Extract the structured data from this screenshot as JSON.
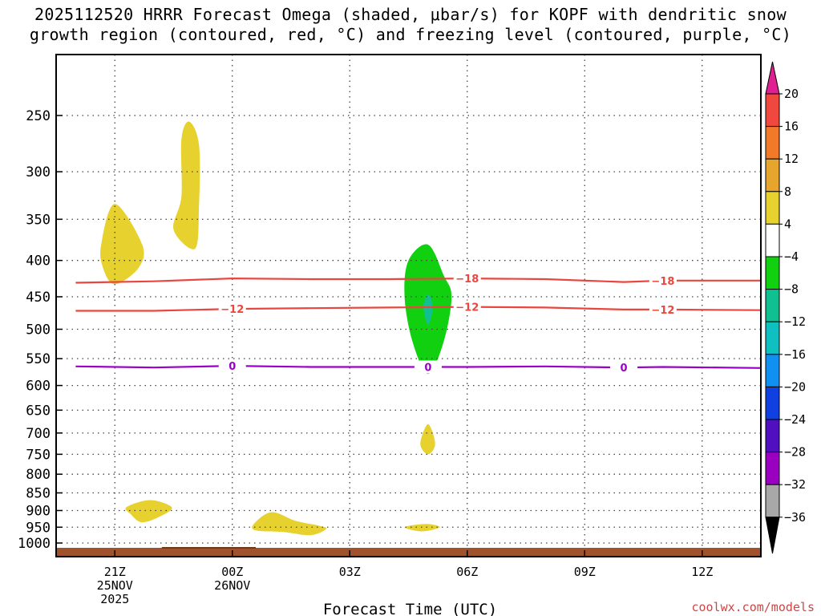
{
  "title_line1": "2025112520 HRRR Forecast Omega (shaded, μbar/s) for KOPF with dendritic snow",
  "title_line2": "growth region (contoured, red, °C) and freezing level (contoured, purple, °C)",
  "credit": "coolwx.com/models",
  "colors": {
    "dgz_contour": "#e8473f",
    "freezing_contour": "#9a00c8",
    "ground": "#a0522d",
    "grid": "#444444"
  },
  "chart_data": {
    "type": "heatmap",
    "xlabel": "Forecast Time (UTC)",
    "ylabel": "",
    "y_axis": "pressure (hPa), log scale, inverted",
    "ylim": [
      1050,
      200
    ],
    "xlim_hours_after_21Z": [
      -1.5,
      16.5
    ],
    "y_ticks": [
      250,
      300,
      350,
      400,
      450,
      500,
      550,
      600,
      650,
      700,
      750,
      800,
      850,
      900,
      950,
      1000
    ],
    "x_ticks": [
      {
        "hour": 0,
        "line1": "21Z",
        "line2": "25NOV",
        "line3": "2025"
      },
      {
        "hour": 3,
        "line1": "00Z",
        "line2": "26NOV",
        "line3": ""
      },
      {
        "hour": 6,
        "line1": "03Z",
        "line2": "",
        "line3": ""
      },
      {
        "hour": 9,
        "line1": "06Z",
        "line2": "",
        "line3": ""
      },
      {
        "hour": 12,
        "line1": "09Z",
        "line2": "",
        "line3": ""
      },
      {
        "hour": 15,
        "line1": "12Z",
        "line2": "",
        "line3": ""
      }
    ],
    "grid": true,
    "colorbar": {
      "labels": [
        "20",
        "16",
        "12",
        "8",
        "4",
        "−4",
        "−8",
        "−12",
        "−16",
        "−20",
        "−24",
        "−28",
        "−32",
        "−36"
      ],
      "bins": [
        {
          "color": "#e02090"
        },
        {
          "color": "#f0473f"
        },
        {
          "color": "#f07a2a"
        },
        {
          "color": "#e6a62e"
        },
        {
          "color": "#e6d12e"
        },
        {
          "color": "#ffffff"
        },
        {
          "color": "#10d010"
        },
        {
          "color": "#10c090"
        },
        {
          "color": "#10c0c0"
        },
        {
          "color": "#1090f0"
        },
        {
          "color": "#1040e0"
        },
        {
          "color": "#5010c0"
        },
        {
          "color": "#9a00c0"
        },
        {
          "color": "#a8a8a8"
        },
        {
          "color": "#000000"
        }
      ]
    },
    "contours": [
      {
        "name": "dgz-minus18",
        "label": "−18",
        "color": "#e8473f",
        "points": [
          [
            -1.0,
            430
          ],
          [
            1.0,
            428
          ],
          [
            3.0,
            424
          ],
          [
            5.0,
            425
          ],
          [
            7.0,
            425
          ],
          [
            9.0,
            424
          ],
          [
            11.0,
            425
          ],
          [
            13.0,
            429
          ],
          [
            14.0,
            427
          ],
          [
            16.5,
            427
          ]
        ],
        "label_hours": [
          9.0,
          14.0
        ]
      },
      {
        "name": "dgz-minus12",
        "label": "−12",
        "color": "#e8473f",
        "points": [
          [
            -1.0,
            471
          ],
          [
            1.0,
            471
          ],
          [
            3.0,
            468
          ],
          [
            5.0,
            467
          ],
          [
            7.0,
            466
          ],
          [
            9.0,
            465
          ],
          [
            11.0,
            466
          ],
          [
            13.0,
            469
          ],
          [
            14.0,
            469
          ],
          [
            16.5,
            470
          ]
        ],
        "label_hours": [
          3.0,
          9.0,
          14.0
        ]
      },
      {
        "name": "freezing-level-0",
        "label": "0",
        "color": "#9a00c8",
        "points": [
          [
            -1.0,
            564
          ],
          [
            1.0,
            566
          ],
          [
            3.0,
            563
          ],
          [
            5.0,
            565
          ],
          [
            7.0,
            565
          ],
          [
            9.0,
            565
          ],
          [
            11.0,
            564
          ],
          [
            13.0,
            566
          ],
          [
            14.0,
            565
          ],
          [
            16.5,
            567
          ]
        ],
        "label_hours": [
          3.0,
          8.0,
          13.0
        ]
      }
    ],
    "omega_regions": [
      {
        "name": "rising-yellow-upper-left",
        "value_bin": "4",
        "color": "#e6d12e",
        "points": [
          [
            0.0,
            333
          ],
          [
            0.7,
            380
          ],
          [
            0.6,
            410
          ],
          [
            0.0,
            432
          ],
          [
            -0.3,
            410
          ],
          [
            -0.35,
            380
          ]
        ]
      },
      {
        "name": "rising-yellow-upper-tall",
        "value_bin": "4",
        "color": "#e6d12e",
        "points": [
          [
            1.9,
            255
          ],
          [
            2.15,
            275
          ],
          [
            2.15,
            335
          ],
          [
            2.05,
            385
          ],
          [
            1.5,
            362
          ],
          [
            1.7,
            325
          ],
          [
            1.7,
            270
          ]
        ]
      },
      {
        "name": "sinking-green-core",
        "value_bin": "-4",
        "color": "#10d010",
        "points": [
          [
            8.0,
            380
          ],
          [
            8.4,
            420
          ],
          [
            8.6,
            450
          ],
          [
            8.4,
            520
          ],
          [
            8.0,
            578
          ],
          [
            7.6,
            520
          ],
          [
            7.4,
            450
          ],
          [
            7.5,
            400
          ]
        ]
      },
      {
        "name": "sinking-cyan-inner",
        "value_bin": "-8",
        "color": "#10c090",
        "points": [
          [
            8.0,
            446
          ],
          [
            8.12,
            465
          ],
          [
            8.0,
            493
          ],
          [
            7.88,
            465
          ]
        ]
      },
      {
        "name": "rising-yellow-mid-small",
        "value_bin": "4",
        "color": "#e6d12e",
        "points": [
          [
            8.0,
            680
          ],
          [
            8.18,
            725
          ],
          [
            8.0,
            750
          ],
          [
            7.8,
            725
          ]
        ]
      },
      {
        "name": "rising-yellow-low-1",
        "value_bin": "4",
        "color": "#e6d12e",
        "points": [
          [
            0.3,
            890
          ],
          [
            0.9,
            870
          ],
          [
            1.45,
            890
          ],
          [
            1.2,
            915
          ],
          [
            0.7,
            935
          ],
          [
            0.4,
            910
          ]
        ]
      },
      {
        "name": "rising-yellow-low-2",
        "value_bin": "4",
        "color": "#e6d12e",
        "points": [
          [
            3.55,
            940
          ],
          [
            4.0,
            905
          ],
          [
            4.6,
            930
          ],
          [
            5.2,
            945
          ],
          [
            5.4,
            955
          ],
          [
            5.0,
            975
          ],
          [
            4.3,
            965
          ],
          [
            3.6,
            960
          ]
        ]
      },
      {
        "name": "rising-yellow-low-3",
        "value_bin": "4",
        "color": "#e6d12e",
        "points": [
          [
            7.4,
            950
          ],
          [
            7.95,
            940
          ],
          [
            8.3,
            950
          ],
          [
            7.85,
            963
          ]
        ]
      }
    ]
  }
}
